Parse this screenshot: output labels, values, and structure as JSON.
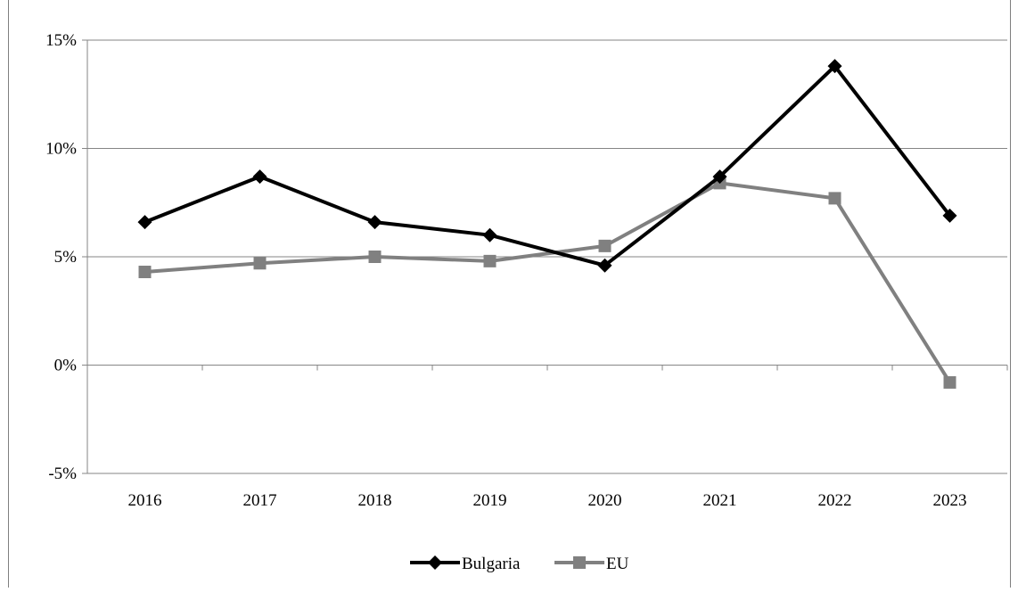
{
  "chart_data": {
    "type": "line",
    "title": "",
    "categories": [
      "2016",
      "2017",
      "2018",
      "2019",
      "2020",
      "2021",
      "2022",
      "2023"
    ],
    "y_tick_labels": [
      "15%",
      "10%",
      "5%",
      "0%",
      "-5%"
    ],
    "y_ticks": [
      15,
      10,
      5,
      0,
      -5
    ],
    "ylim": [
      -5,
      15
    ],
    "grid": true,
    "legend_position": "bottom",
    "series": [
      {
        "name": "Bulgaria",
        "color": "#000000",
        "marker": "diamond",
        "values": [
          6.6,
          8.7,
          6.6,
          6.0,
          4.6,
          8.7,
          13.8,
          6.9
        ]
      },
      {
        "name": "EU",
        "color": "#808080",
        "marker": "square",
        "values": [
          4.3,
          4.7,
          5.0,
          4.8,
          5.5,
          8.4,
          7.7,
          -0.8
        ]
      }
    ]
  }
}
